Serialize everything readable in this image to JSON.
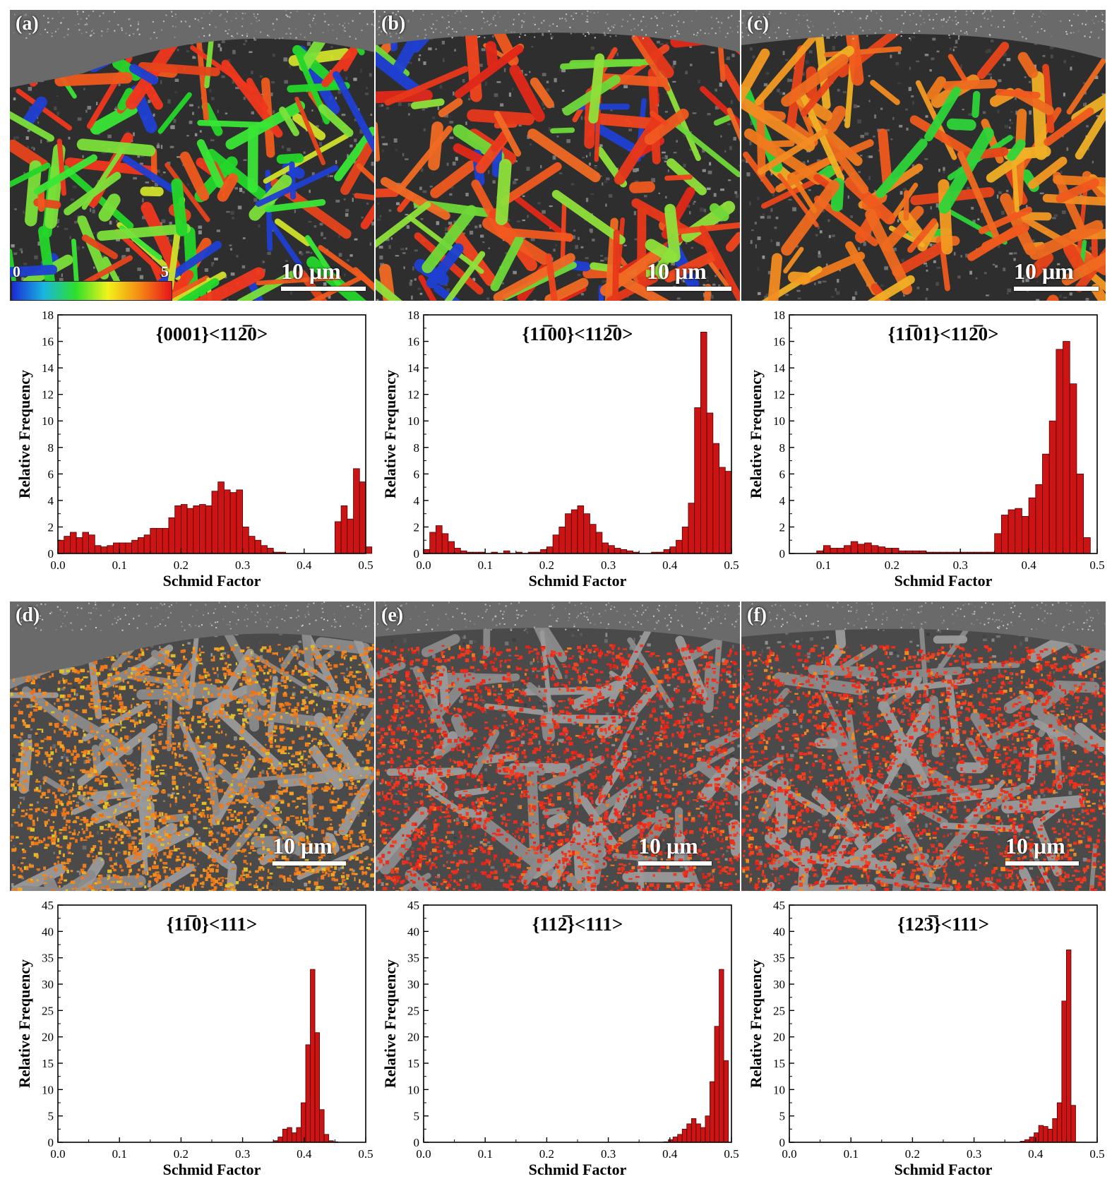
{
  "maps": [
    {
      "id": "a",
      "label": "(a)",
      "scale_text": "10 μm",
      "palette": [
        "#24d62a",
        "#39e636",
        "#7be03a",
        "#f0371e",
        "#e6451c",
        "#1f3fd2",
        "#d0e22a",
        "#f05a1e"
      ],
      "colorbar": {
        "min": "0",
        "max": "5"
      }
    },
    {
      "id": "b",
      "label": "(b)",
      "scale_text": "10 μm",
      "palette": [
        "#f0451e",
        "#e8381a",
        "#f05a20",
        "#8ee03a",
        "#6fd838",
        "#1f3fd2",
        "#e02818",
        "#f06a24"
      ]
    },
    {
      "id": "c",
      "label": "(c)",
      "scale_text": "10 μm",
      "palette": [
        "#f05a1e",
        "#f07a1e",
        "#f39a22",
        "#e8451a",
        "#2ed43a",
        "#f0b026",
        "#ee6a20",
        "#f28c22"
      ]
    },
    {
      "id": "d",
      "label": "(d)",
      "scale_text": "10 μm",
      "palette": [
        "#f07a1c",
        "#ee8a1e",
        "#f08a20",
        "#e8701a",
        "#f0a428",
        "#e0c028",
        "#f07c1e",
        "#ea7418"
      ]
    },
    {
      "id": "e",
      "label": "(e)",
      "scale_text": "10 μm",
      "palette": [
        "#f0281e",
        "#e8301a",
        "#f03a22",
        "#e02418",
        "#f0451e",
        "#f07820",
        "#ee2a1c",
        "#e83a1e"
      ]
    },
    {
      "id": "f",
      "label": "(f)",
      "scale_text": "10 μm",
      "palette": [
        "#f02c1e",
        "#e8321a",
        "#f03c22",
        "#e02618",
        "#f0481e",
        "#f08a20",
        "#ee2e1c",
        "#e83c1e"
      ]
    }
  ],
  "chart_data": [
    {
      "type": "bar",
      "title": "{0001}<112̅0>",
      "xlabel": "Schmid Factor",
      "ylabel": "Relative Frequency",
      "xlim": [
        0,
        0.5
      ],
      "ylim": [
        0,
        18
      ],
      "xticks": [
        "0.0",
        "0.1",
        "0.2",
        "0.3",
        "0.4",
        "0.5"
      ],
      "yticks": [
        "0",
        "2",
        "4",
        "6",
        "8",
        "10",
        "12",
        "14",
        "16",
        "18"
      ],
      "x_start": 0.0,
      "bin_width": 0.01,
      "values": [
        1.0,
        1.3,
        1.6,
        1.2,
        1.6,
        1.4,
        0.6,
        0.5,
        0.6,
        0.8,
        0.8,
        0.8,
        1.0,
        1.2,
        1.4,
        1.9,
        1.9,
        1.9,
        2.7,
        3.6,
        3.7,
        3.4,
        3.6,
        3.7,
        3.6,
        4.7,
        5.4,
        4.8,
        4.6,
        4.8,
        2.0,
        1.3,
        1.0,
        0.6,
        0.4,
        0.1,
        0.1,
        0.0,
        0.0,
        0.0,
        0.0,
        0.0,
        0.0,
        0.0,
        0.0,
        2.4,
        3.6,
        2.6,
        6.4,
        5.4,
        0.5
      ]
    },
    {
      "type": "bar",
      "title": "{11̅00}<112̅0>",
      "xlabel": "Schmid Factor",
      "ylabel": "Relative Frequency",
      "xlim": [
        0,
        0.5
      ],
      "ylim": [
        0,
        18
      ],
      "xticks": [
        "0.0",
        "0.1",
        "0.2",
        "0.3",
        "0.4",
        "0.5"
      ],
      "yticks": [
        "0",
        "2",
        "4",
        "6",
        "8",
        "10",
        "12",
        "14",
        "16",
        "18"
      ],
      "x_start": 0.0,
      "bin_width": 0.01,
      "values": [
        0.3,
        1.6,
        2.1,
        1.5,
        0.9,
        0.4,
        0.2,
        0.1,
        0.1,
        0.1,
        0.0,
        0.1,
        0.0,
        0.2,
        0.0,
        0.1,
        0.0,
        0.1,
        0.1,
        0.3,
        0.5,
        1.4,
        2.0,
        3.0,
        3.3,
        3.6,
        3.0,
        2.2,
        1.6,
        0.8,
        0.6,
        0.4,
        0.3,
        0.2,
        0.1,
        0.0,
        0.0,
        0.1,
        0.1,
        0.3,
        0.5,
        1.0,
        2.0,
        3.8,
        11.0,
        16.7,
        10.6,
        8.3,
        6.5,
        6.2
      ]
    },
    {
      "type": "bar",
      "title": "{11̅01}<112̅0>",
      "xlabel": "Schmid Factor",
      "ylabel": "Relative Frequency",
      "xlim": [
        0.05,
        0.5
      ],
      "ylim": [
        0,
        18
      ],
      "xticks": [
        "0.1",
        "0.2",
        "0.3",
        "0.4",
        "0.5"
      ],
      "xtick_values": [
        0.1,
        0.2,
        0.3,
        0.4,
        0.5
      ],
      "yticks": [
        "0",
        "2",
        "4",
        "6",
        "8",
        "10",
        "12",
        "14",
        "16",
        "18"
      ],
      "x_start": 0.09,
      "bin_width": 0.01,
      "values": [
        0.2,
        0.6,
        0.4,
        0.4,
        0.6,
        0.9,
        0.7,
        0.8,
        0.6,
        0.5,
        0.4,
        0.4,
        0.2,
        0.2,
        0.2,
        0.2,
        0.1,
        0.1,
        0.1,
        0.1,
        0.1,
        0.1,
        0.1,
        0.1,
        0.1,
        0.1,
        1.5,
        2.9,
        3.3,
        3.4,
        2.8,
        4.2,
        5.2,
        7.5,
        10.0,
        15.4,
        16.0,
        12.8,
        6.0,
        1.2
      ]
    },
    {
      "type": "bar",
      "title": "{11̅0}<111>",
      "xlabel": "Schmid Factor",
      "ylabel": "Relative Frequency",
      "xlim": [
        0,
        0.5
      ],
      "ylim": [
        0,
        45
      ],
      "xticks": [
        "0.0",
        "0.1",
        "0.2",
        "0.3",
        "0.4",
        "0.5"
      ],
      "yticks": [
        "0",
        "5",
        "10",
        "15",
        "20",
        "25",
        "30",
        "35",
        "40",
        "45"
      ],
      "x_start": 0.35,
      "bin_width": 0.0075,
      "values": [
        0.3,
        1.0,
        2.5,
        2.8,
        1.8,
        2.8,
        7.5,
        18.5,
        32.8,
        20.8,
        6.2,
        1.5,
        0.3,
        0.1
      ]
    },
    {
      "type": "bar",
      "title": "{112̅}<111>",
      "xlabel": "Schmid Factor",
      "ylabel": "Relative Frequency",
      "xlim": [
        0,
        0.5
      ],
      "ylim": [
        0,
        45
      ],
      "xticks": [
        "0.0",
        "0.1",
        "0.2",
        "0.3",
        "0.4",
        "0.5"
      ],
      "yticks": [
        "0",
        "5",
        "10",
        "15",
        "20",
        "25",
        "30",
        "35",
        "40",
        "45"
      ],
      "x_start": 0.39,
      "bin_width": 0.0075,
      "values": [
        0.1,
        0.5,
        1.0,
        1.5,
        2.5,
        3.5,
        4.5,
        3.5,
        2.8,
        5.0,
        11.5,
        22.0,
        32.8,
        15.5
      ]
    },
    {
      "type": "bar",
      "title": "{123̅}<111>",
      "xlabel": "Schmid Factor",
      "ylabel": "Relative Frequency",
      "xlim": [
        0,
        0.5
      ],
      "ylim": [
        0,
        45
      ],
      "xticks": [
        "0.0",
        "0.1",
        "0.2",
        "0.3",
        "0.4",
        "0.5"
      ],
      "yticks": [
        "0",
        "5",
        "10",
        "15",
        "20",
        "25",
        "30",
        "35",
        "40",
        "45"
      ],
      "x_start": 0.375,
      "bin_width": 0.0075,
      "values": [
        0.2,
        0.5,
        1.0,
        1.8,
        3.2,
        3.0,
        2.5,
        4.5,
        7.5,
        26.8,
        36.5,
        7.0
      ]
    }
  ]
}
